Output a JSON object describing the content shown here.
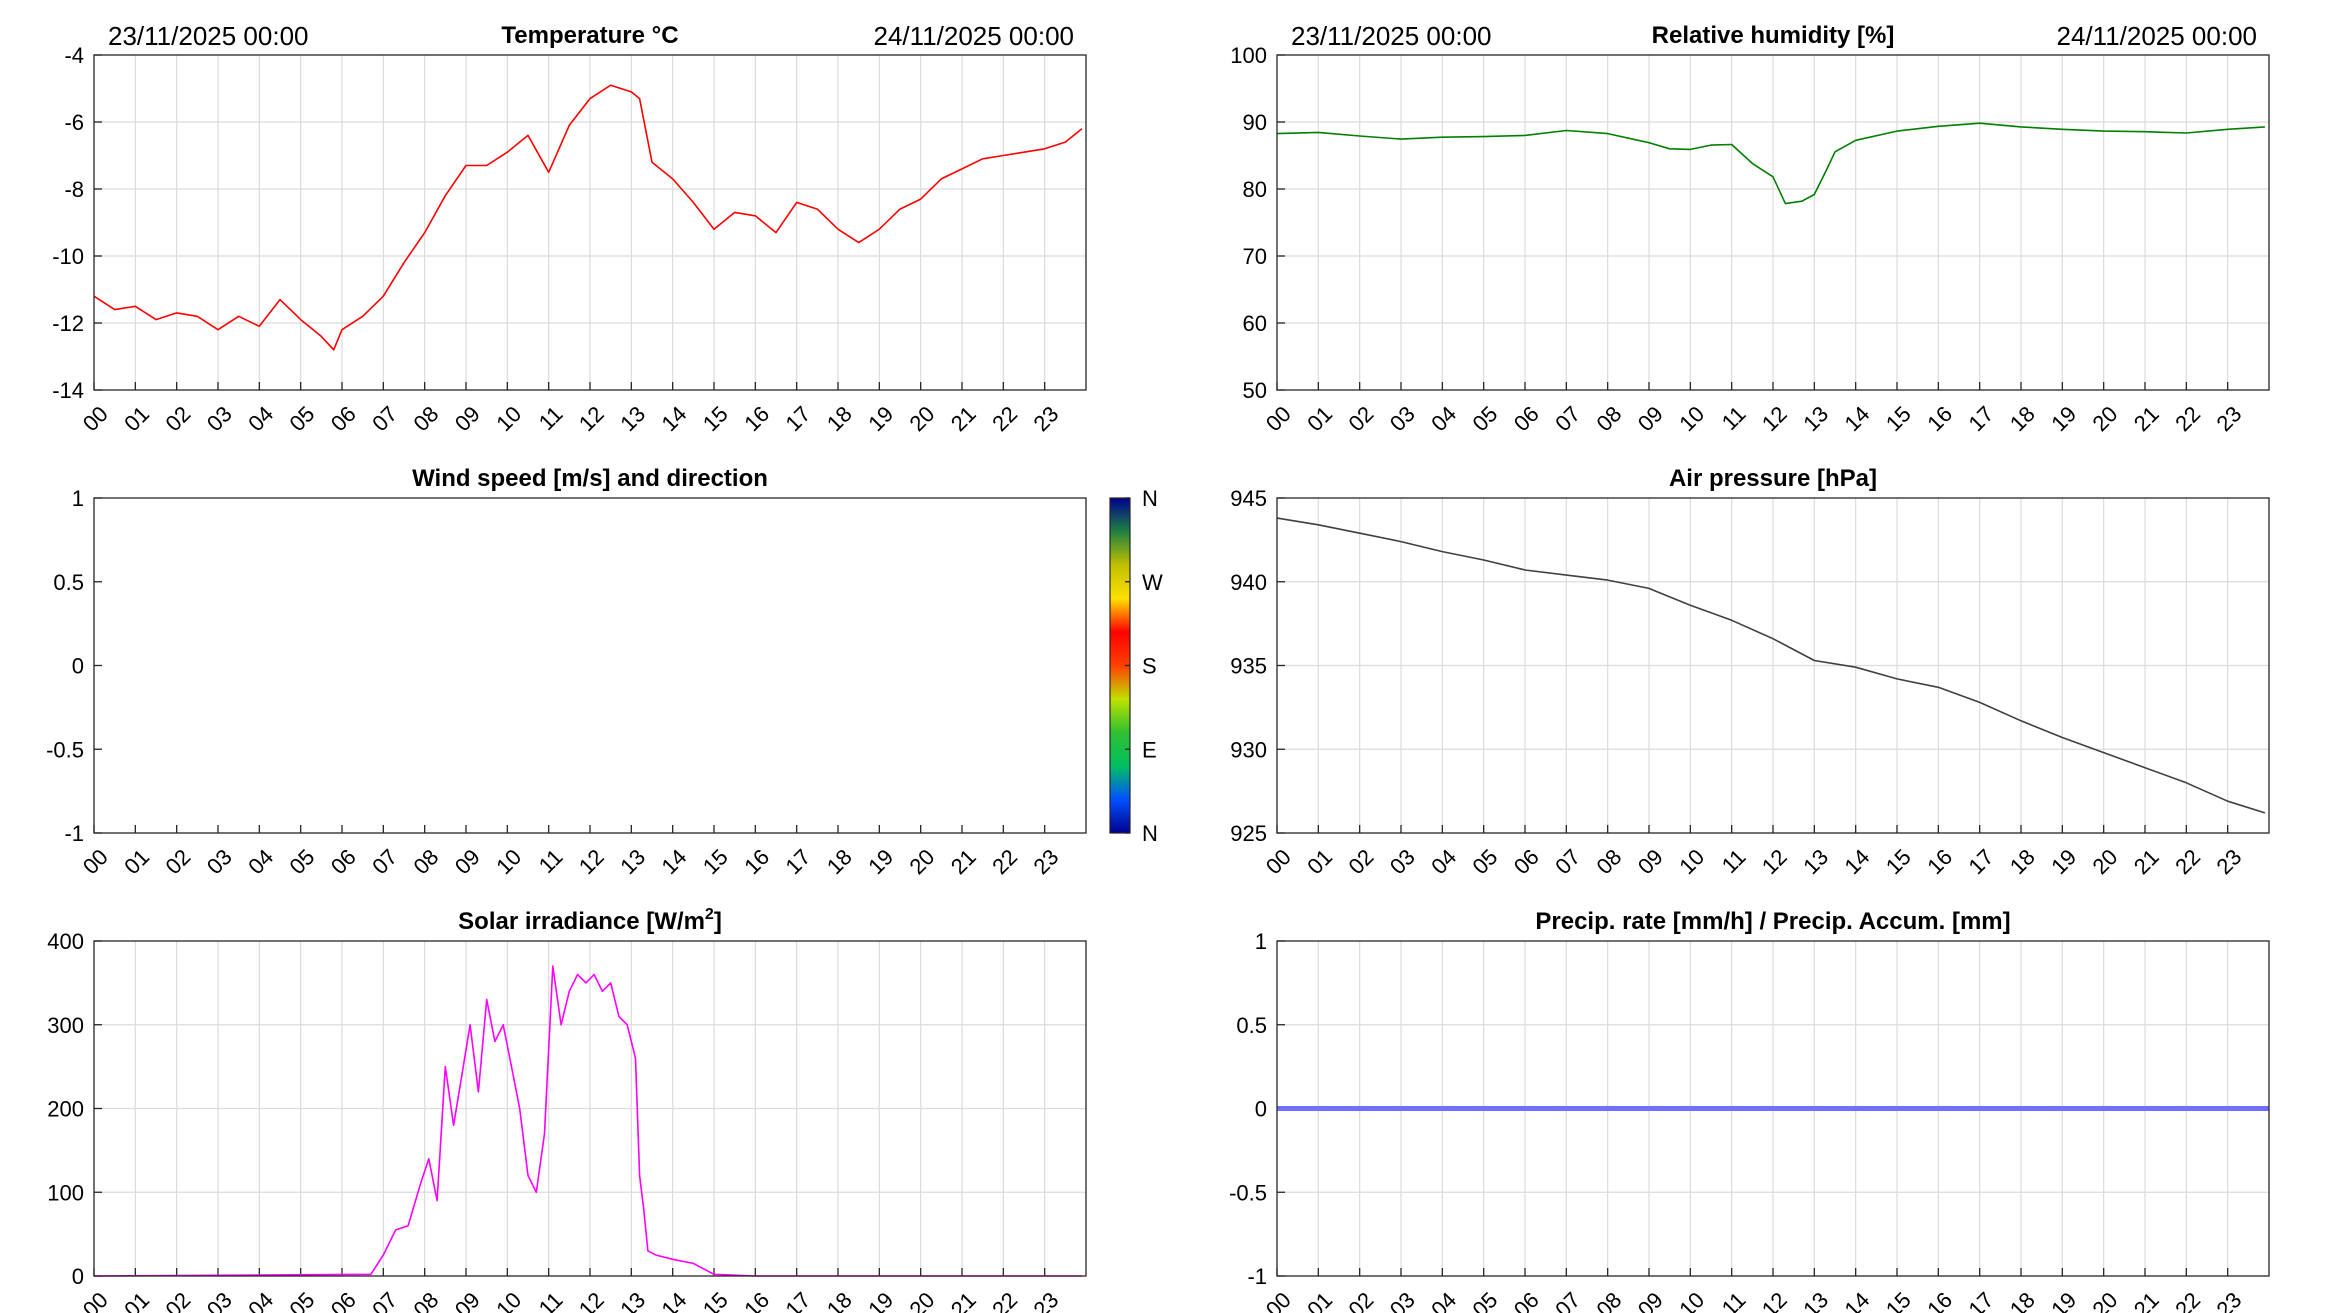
{
  "chart_data": [
    {
      "id": "temperature",
      "type": "line",
      "title": "Temperature °C",
      "date_start": "23/11/2025 00:00",
      "date_end": "24/11/2025 00:00",
      "color": "#ff0000",
      "ylim": [
        -14,
        -4
      ],
      "yticks": [
        "-4",
        "-6",
        "-8",
        "-10",
        "-12",
        "-14"
      ],
      "xticks": [
        "00",
        "01",
        "02",
        "03",
        "04",
        "05",
        "06",
        "07",
        "08",
        "09",
        "10",
        "11",
        "12",
        "13",
        "14",
        "15",
        "16",
        "17",
        "18",
        "19",
        "20",
        "21",
        "22",
        "23"
      ],
      "grid": true,
      "series": [
        {
          "x": [
            0,
            0.5,
            1,
            1.5,
            2,
            2.5,
            3,
            3.5,
            4,
            4.5,
            5,
            5.5,
            5.8,
            6,
            6.5,
            7,
            7.5,
            8,
            8.5,
            9,
            9.5,
            10,
            10.5,
            11,
            11.5,
            12,
            12.5,
            13,
            13.2,
            13.5,
            14,
            14.5,
            15,
            15.5,
            16,
            16.5,
            17,
            17.5,
            18,
            18.5,
            19,
            19.5,
            20,
            20.5,
            21,
            21.5,
            22,
            22.5,
            23,
            23.5,
            23.9
          ],
          "values": [
            -11.2,
            -11.6,
            -11.5,
            -11.9,
            -11.7,
            -11.8,
            -12.2,
            -11.8,
            -12.1,
            -11.3,
            -11.9,
            -12.4,
            -12.8,
            -12.2,
            -11.8,
            -11.2,
            -10.2,
            -9.3,
            -8.2,
            -7.3,
            -7.3,
            -6.9,
            -6.4,
            -7.5,
            -6.1,
            -5.3,
            -4.9,
            -5.1,
            -5.3,
            -7.2,
            -7.7,
            -8.4,
            -9.2,
            -8.7,
            -8.8,
            -9.3,
            -8.4,
            -8.6,
            -9.2,
            -9.6,
            -9.2,
            -8.6,
            -8.3,
            -7.7,
            -7.4,
            -7.1,
            -7.0,
            -6.9,
            -6.8,
            -6.6,
            -6.2
          ]
        }
      ]
    },
    {
      "id": "humidity",
      "type": "line",
      "title": "Relative humidity [%]",
      "date_start": "23/11/2025 00:00",
      "date_end": "24/11/2025 00:00",
      "color": "#008000",
      "ylim": [
        50,
        105
      ],
      "yticks": [
        "100",
        "90",
        "80",
        "70",
        "60",
        "50"
      ],
      "xticks": [
        "00",
        "01",
        "02",
        "03",
        "04",
        "05",
        "06",
        "07",
        "08",
        "09",
        "10",
        "11",
        "12",
        "13",
        "14",
        "15",
        "16",
        "17",
        "18",
        "19",
        "20",
        "21",
        "22",
        "23"
      ],
      "grid": true,
      "series": [
        {
          "x": [
            0,
            1,
            2,
            3,
            4,
            5,
            6,
            7,
            8,
            9,
            9.5,
            10,
            10.5,
            11,
            11.5,
            12,
            12.3,
            12.7,
            13,
            13.3,
            13.5,
            14,
            15,
            16,
            17,
            18,
            19,
            20,
            21,
            22,
            23,
            23.9
          ],
          "values": [
            92.1,
            92.3,
            91.7,
            91.2,
            91.5,
            91.6,
            91.8,
            92.6,
            92.1,
            90.6,
            89.6,
            89.5,
            90.2,
            90.3,
            87.2,
            85.0,
            80.6,
            81.0,
            82.1,
            86.2,
            89.1,
            91.0,
            92.5,
            93.3,
            93.8,
            93.2,
            92.8,
            92.5,
            92.4,
            92.2,
            92.8,
            93.2
          ]
        }
      ]
    },
    {
      "id": "wind",
      "type": "scatter",
      "title": "Wind speed [m/s] and direction",
      "ylim": [
        -1,
        1
      ],
      "yticks": [
        "1",
        "0.5",
        "0",
        "-0.5",
        "-1"
      ],
      "xticks": [
        "00",
        "01",
        "02",
        "03",
        "04",
        "05",
        "06",
        "07",
        "08",
        "09",
        "10",
        "11",
        "12",
        "13",
        "14",
        "15",
        "16",
        "17",
        "18",
        "19",
        "20",
        "21",
        "22",
        "23"
      ],
      "grid": false,
      "series": [],
      "colorbar": {
        "labels": [
          "N",
          "W",
          "S",
          "E",
          "N"
        ],
        "colors": [
          "#00008f",
          "#0050ff",
          "#00c060",
          "#30c030",
          "#c0e000",
          "#ff4000",
          "#ff0000",
          "#ffe000",
          "#c0c000",
          "#208040",
          "#000090"
        ]
      }
    },
    {
      "id": "pressure",
      "type": "line",
      "title": "Air pressure [hPa]",
      "color": "#404040",
      "ylim": [
        925,
        945
      ],
      "yticks": [
        "945",
        "940",
        "935",
        "930",
        "925"
      ],
      "xticks": [
        "00",
        "01",
        "02",
        "03",
        "04",
        "05",
        "06",
        "07",
        "08",
        "09",
        "10",
        "11",
        "12",
        "13",
        "14",
        "15",
        "16",
        "17",
        "18",
        "19",
        "20",
        "21",
        "22",
        "23"
      ],
      "grid": true,
      "series": [
        {
          "x": [
            0,
            1,
            2,
            3,
            4,
            5,
            6,
            7,
            8,
            9,
            10,
            11,
            12,
            13,
            14,
            15,
            16,
            17,
            18,
            19,
            20,
            21,
            22,
            23,
            23.9
          ],
          "values": [
            943.8,
            943.4,
            942.9,
            942.4,
            941.8,
            941.3,
            940.7,
            940.4,
            940.1,
            939.6,
            938.6,
            937.7,
            936.6,
            935.3,
            934.9,
            934.2,
            933.7,
            932.8,
            931.7,
            930.7,
            929.8,
            928.9,
            928.0,
            926.9,
            926.2
          ]
        }
      ]
    },
    {
      "id": "solar",
      "type": "line",
      "title": "Solar irradiance [W/m",
      "title_sup": "2",
      "title_end": "]",
      "color": "#ff00ff",
      "ylim": [
        0,
        400
      ],
      "yticks": [
        "400",
        "300",
        "200",
        "100",
        "0"
      ],
      "xticks": [
        "00",
        "01",
        "02",
        "03",
        "04",
        "05",
        "06",
        "07",
        "08",
        "09",
        "10",
        "11",
        "12",
        "13",
        "14",
        "15",
        "16",
        "17",
        "18",
        "19",
        "20",
        "21",
        "22",
        "23"
      ],
      "grid": true,
      "series": [
        {
          "x": [
            0,
            6.7,
            7.0,
            7.3,
            7.6,
            7.9,
            8.1,
            8.3,
            8.5,
            8.7,
            8.9,
            9.1,
            9.3,
            9.5,
            9.7,
            9.9,
            10.1,
            10.3,
            10.5,
            10.7,
            10.9,
            11.1,
            11.3,
            11.5,
            11.7,
            11.9,
            12.1,
            12.3,
            12.5,
            12.7,
            12.9,
            13.1,
            13.2,
            13.3,
            13.4,
            13.6,
            14.0,
            14.5,
            15.0,
            16.0,
            23.9
          ],
          "values": [
            0,
            2,
            25,
            55,
            60,
            110,
            140,
            90,
            250,
            180,
            240,
            300,
            220,
            330,
            280,
            300,
            250,
            200,
            120,
            100,
            170,
            370,
            300,
            340,
            360,
            350,
            360,
            340,
            350,
            310,
            300,
            260,
            120,
            80,
            30,
            25,
            20,
            15,
            2,
            0,
            0
          ]
        }
      ]
    },
    {
      "id": "precip",
      "type": "line",
      "title": "Precip. rate [mm/h] / Precip. Accum. [mm]",
      "color": "#7070ff",
      "ylim": [
        -1,
        1
      ],
      "yticks": [
        "1",
        "0.5",
        "0",
        "-0.5",
        "-1"
      ],
      "xticks": [
        "00",
        "01",
        "02",
        "03",
        "04",
        "05",
        "06",
        "07",
        "08",
        "09",
        "10",
        "11",
        "12",
        "13",
        "14",
        "15",
        "16",
        "17",
        "18",
        "19",
        "20",
        "21",
        "22",
        "23"
      ],
      "grid": true,
      "series": [
        {
          "x": [
            0,
            24
          ],
          "values": [
            0,
            0
          ]
        }
      ]
    }
  ]
}
